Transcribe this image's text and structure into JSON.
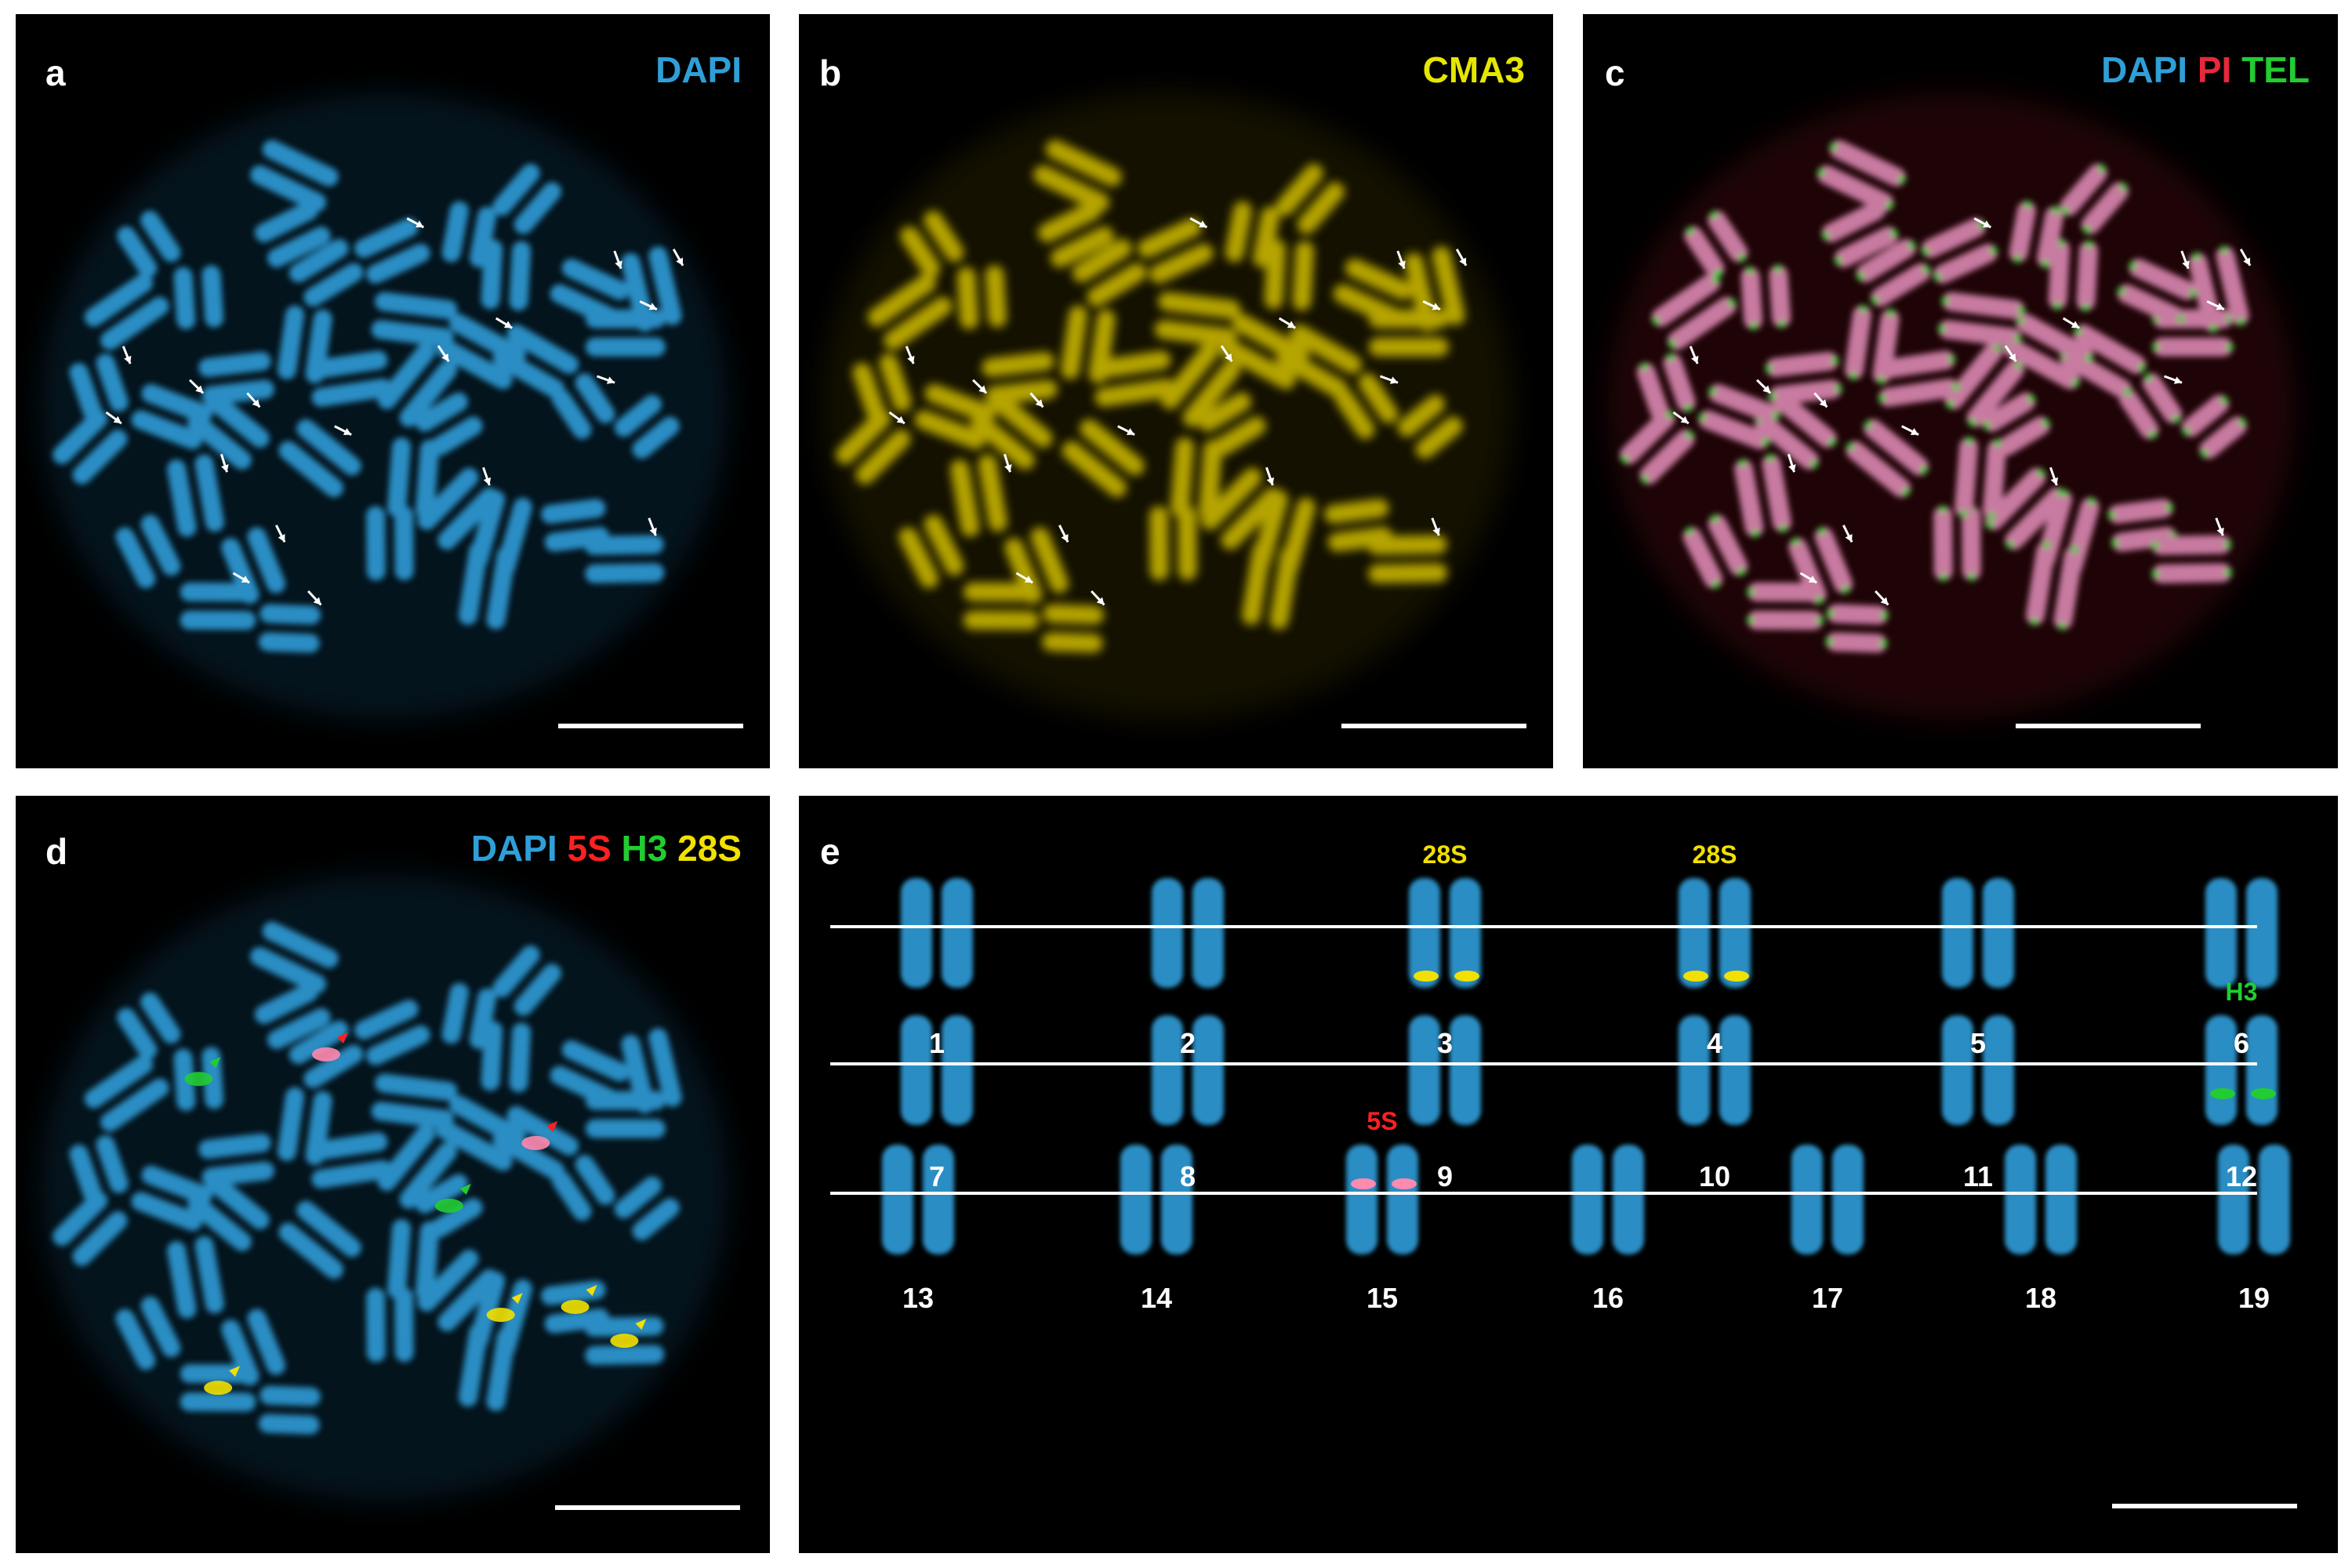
{
  "colors": {
    "dapi": "#2f9fd8",
    "cma3": "#e6e600",
    "pi": "#e8283c",
    "tel": "#22cc33",
    "probe_5s": "#ff2020",
    "probe_h3": "#22cc33",
    "probe_28s": "#f2e000",
    "chromosome_blue": "#2a8ec4",
    "chromosome_yellow": "#b5a400",
    "chromosome_pink": "#c87aa0"
  },
  "panels": {
    "a": {
      "letter": "a",
      "channels": [
        {
          "text": "DAPI",
          "color_key": "dapi"
        }
      ]
    },
    "b": {
      "letter": "b",
      "channels": [
        {
          "text": "CMA3",
          "color_key": "cma3"
        }
      ]
    },
    "c": {
      "letter": "c",
      "channels": [
        {
          "text": "DAPI",
          "color_key": "dapi"
        },
        {
          "text": "PI",
          "color_key": "pi"
        },
        {
          "text": "TEL",
          "color_key": "tel"
        }
      ]
    },
    "d": {
      "letter": "d",
      "channels": [
        {
          "text": "DAPI",
          "color_key": "dapi"
        },
        {
          "text": "5S",
          "color_key": "probe_5s"
        },
        {
          "text": "H3",
          "color_key": "probe_h3"
        },
        {
          "text": "28S",
          "color_key": "probe_28s"
        }
      ]
    },
    "e": {
      "letter": "e"
    }
  },
  "karyotype": {
    "pairs": [
      {
        "number": "1"
      },
      {
        "number": "2"
      },
      {
        "number": "3",
        "probe": "28S",
        "probe_color_key": "probe_28s"
      },
      {
        "number": "4",
        "probe": "28S",
        "probe_color_key": "probe_28s"
      },
      {
        "number": "5"
      },
      {
        "number": "6"
      },
      {
        "number": "7"
      },
      {
        "number": "8"
      },
      {
        "number": "9"
      },
      {
        "number": "10"
      },
      {
        "number": "11"
      },
      {
        "number": "12",
        "probe": "H3",
        "probe_color_key": "probe_h3"
      },
      {
        "number": "13"
      },
      {
        "number": "14"
      },
      {
        "number": "15",
        "probe": "5S",
        "probe_color_key": "probe_5s"
      },
      {
        "number": "16"
      },
      {
        "number": "17"
      },
      {
        "number": "18"
      },
      {
        "number": "19"
      }
    ]
  }
}
